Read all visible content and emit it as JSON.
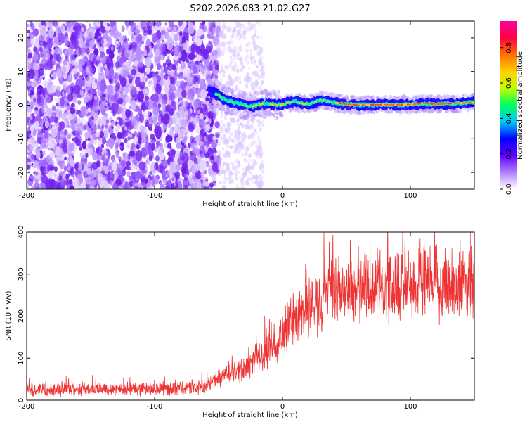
{
  "page": {
    "title": "S202.2026.083.21.02.G27"
  },
  "chart_data": [
    {
      "type": "heatmap",
      "title": "S202.2026.083.21.02.G27",
      "xlabel": "Height of straight line (km)",
      "ylabel": "Frequency (Hz)",
      "xlim": [
        -200,
        150
      ],
      "ylim": [
        -25,
        25
      ],
      "xticks": [
        -200,
        -100,
        0,
        100
      ],
      "yticks": [
        -20,
        -10,
        0,
        10,
        20
      ],
      "colorbar": {
        "label": "Normalized spectral amplitude",
        "range": [
          0,
          0.95
        ],
        "ticks": [
          "0.0",
          "0.2",
          "0.4",
          "0.6",
          "0.8"
        ],
        "tick_values": [
          0,
          0.2,
          0.4,
          0.6,
          0.8
        ],
        "colors": [
          "#ffffff",
          "#b080ff",
          "#6000ff",
          "#0000ff",
          "#00c8ff",
          "#00ff60",
          "#c0ff00",
          "#ffd000",
          "#ff7000",
          "#ff0040",
          "#ff00a0"
        ]
      },
      "trace": {
        "description_free": true,
        "x": [
          -55,
          -50,
          -45,
          -40,
          -35,
          -30,
          -25,
          -20,
          -15,
          -10,
          -5,
          0,
          5,
          10,
          15,
          20,
          25,
          30,
          35,
          40,
          45,
          50,
          60,
          70,
          80,
          90,
          100,
          110,
          120,
          130,
          140,
          150
        ],
        "y": [
          4,
          3,
          1.5,
          1,
          0.5,
          0,
          -0.5,
          0,
          0.5,
          0.3,
          0,
          0.2,
          0.8,
          1,
          0.5,
          0.3,
          0.8,
          1.5,
          1.2,
          0.8,
          0.5,
          0.3,
          0,
          0.1,
          0.2,
          0.1,
          0.2,
          0.5,
          0.3,
          0.4,
          0.6,
          0.8
        ]
      }
    },
    {
      "type": "line",
      "xlabel": "Height of straight line (km)",
      "ylabel": "SNR (10 * v/v)",
      "xlim": [
        -200,
        150
      ],
      "ylim": [
        0,
        400
      ],
      "xticks": [
        -200,
        -100,
        0,
        100
      ],
      "yticks": [
        0,
        100,
        200,
        300,
        400
      ],
      "color": "#ee3333",
      "envelope": {
        "x": [
          -200,
          -150,
          -100,
          -60,
          -45,
          -30,
          -20,
          -10,
          0,
          10,
          20,
          30,
          40,
          50,
          60,
          80,
          100,
          120,
          150
        ],
        "y": [
          25,
          27,
          27,
          30,
          60,
          70,
          100,
          120,
          160,
          195,
          220,
          240,
          255,
          265,
          268,
          272,
          275,
          277,
          280
        ]
      }
    }
  ]
}
